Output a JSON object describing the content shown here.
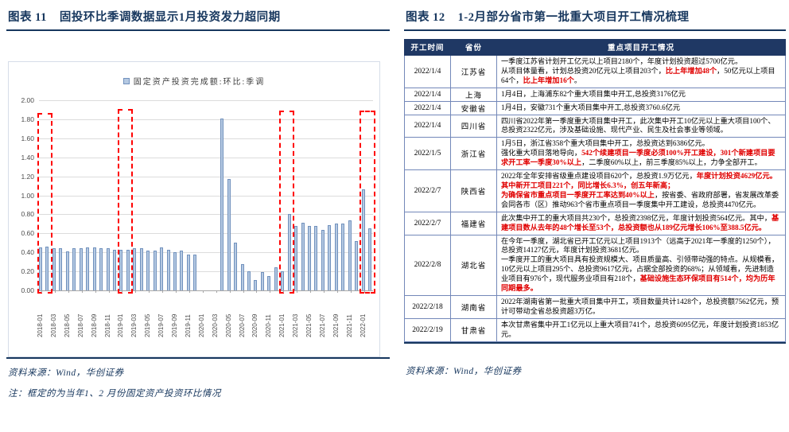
{
  "colors": {
    "navy": "#17375E",
    "table_header_bg": "#1F3864",
    "table_border": "#7388B9",
    "highlight_red": "#FF0000",
    "text_red": "#E00000",
    "bar_fill": "#B5C9E2",
    "bar_border": "#7191BD",
    "gridline": "#DCDCDC"
  },
  "fig11": {
    "label": "图表 11",
    "title": "固投环比季调数据显示1月投资发力超同期",
    "source": "资料来源：Wind，华创证券",
    "note": "注：框定的为当年1、2 月份固定资产投资环比情况"
  },
  "chart_data": {
    "type": "bar",
    "title": "",
    "legend": "固定资产投资完成额:环比:季调",
    "xlabel": "",
    "ylabel": "",
    "ylim": [
      0,
      2
    ],
    "grid": true,
    "y_tick_labels": [
      "2.00",
      "1.80",
      "1.60",
      "1.40",
      "1.20",
      "1.00",
      "0.80",
      "0.60",
      "0.40",
      "0.20",
      "0.00"
    ],
    "x_tick_every": 2,
    "categories": [
      "2018-01",
      "2018-02",
      "2018-03",
      "2018-04",
      "2018-05",
      "2018-06",
      "2018-07",
      "2018-08",
      "2018-09",
      "2018-10",
      "2018-11",
      "2018-12",
      "2019-01",
      "2019-02",
      "2019-03",
      "2019-04",
      "2019-05",
      "2019-06",
      "2019-07",
      "2019-08",
      "2019-09",
      "2019-10",
      "2019-11",
      "2019-12",
      "2020-01",
      "2020-02",
      "2020-03",
      "2020-04",
      "2020-05",
      "2020-06",
      "2020-07",
      "2020-08",
      "2020-09",
      "2020-10",
      "2020-11",
      "2020-12",
      "2021-01",
      "2021-02",
      "2021-03",
      "2021-04",
      "2021-05",
      "2021-06",
      "2021-07",
      "2021-08",
      "2021-09",
      "2021-10",
      "2021-11",
      "2021-12",
      "2022-01",
      "2022-02"
    ],
    "values": [
      0.45,
      0.46,
      0.44,
      0.44,
      0.41,
      0.44,
      0.44,
      0.45,
      0.45,
      0.44,
      0.44,
      0.43,
      0.43,
      0.43,
      0.44,
      0.44,
      0.42,
      0.42,
      0.45,
      0.43,
      0.4,
      0.42,
      0.38,
      0.38,
      null,
      null,
      null,
      1.81,
      1.17,
      0.5,
      0.28,
      0.2,
      0.11,
      0.19,
      0.15,
      0.24,
      0.2,
      0.8,
      0.68,
      0.71,
      0.68,
      0.68,
      0.64,
      0.69,
      0.7,
      0.7,
      0.74,
      0.52,
      1.06,
      0.65
    ],
    "highlight_boxes": [
      {
        "from": "2018-01",
        "to": "2018-02",
        "start_index": 0,
        "end_index": 1,
        "top_value": 1.87
      },
      {
        "from": "2019-01",
        "to": "2019-02",
        "start_index": 12,
        "end_index": 13,
        "top_value": 1.91
      },
      {
        "from": "2021-01",
        "to": "2021-02",
        "start_index": 36,
        "end_index": 37,
        "top_value": 1.89
      },
      {
        "from": "2022-01",
        "to": "2022-02",
        "start_index": 48,
        "end_index": 49,
        "top_value": 1.89
      }
    ]
  },
  "fig12": {
    "label": "图表 12",
    "title": "1-2月部分省市第一批重大项目开工情况梳理",
    "source": "资料来源：Wind，华创证券",
    "table": {
      "headers": [
        "开工时间",
        "省份",
        "重点项目开工情况"
      ],
      "rows": [
        {
          "date": "2022/1/4",
          "province": "江苏省",
          "paragraphs": [
            [
              {
                "t": "一季度江苏省计划开工亿元以上项目2180个，年度计划投资超过5700亿元。",
                "red": false
              }
            ],
            [
              {
                "t": "从项目体量看，计划总投资20亿元以上项目203个，",
                "red": false
              },
              {
                "t": "比上年增加48个",
                "red": true
              },
              {
                "t": "，50亿元以上项目64个，",
                "red": false
              },
              {
                "t": "比上年增加16个",
                "red": true
              },
              {
                "t": "。",
                "red": false
              }
            ]
          ]
        },
        {
          "date": "2022/1/4",
          "province": "上海",
          "paragraphs": [
            [
              {
                "t": "1月4日，上海浦东82个重大项目集中开工,总投资3176亿元",
                "red": false
              }
            ]
          ]
        },
        {
          "date": "2022/1/4",
          "province": "安徽省",
          "paragraphs": [
            [
              {
                "t": "1月4日，安徽731个重大项目集中开工,总投资3760.6亿元",
                "red": false
              }
            ]
          ]
        },
        {
          "date": "2022/1/4",
          "province": "四川省",
          "paragraphs": [
            [
              {
                "t": "四川省2022年第一季度重大项目集中开工，此次集中开工10亿元以上重大项目100个、总投资2322亿元，涉及基础设施、现代产业、民生及社会事业等领域。",
                "red": false
              }
            ]
          ]
        },
        {
          "date": "2022/1/5",
          "province": "浙江省",
          "paragraphs": [
            [
              {
                "t": "1月5日，浙江省358个重大项目集中开工，总投资达到6386亿元。",
                "red": false
              }
            ],
            [
              {
                "t": "强化重大项目落地导向，",
                "red": false
              },
              {
                "t": "542个续建项目一季度必须100%开工建设，301个新建项目要求开工率一季度30%以上",
                "red": true
              },
              {
                "t": "，二季度60%以上，前三季度85%以上，力争全部开工。",
                "red": false
              }
            ]
          ]
        },
        {
          "date": "2022/2/7",
          "province": "陕西省",
          "paragraphs": [
            [
              {
                "t": "2022年全年安排省级重点建设项目620个，总投资1.9万亿元，",
                "red": false
              },
              {
                "t": "年度计划投资4629亿元。其中新开工项目221个，同比增长6.3%，创五年新高；",
                "red": true
              }
            ],
            [
              {
                "t": "为确保省市重点项目一季度开工率达到40%以上",
                "red": true
              },
              {
                "t": "，按省委、省政府部署，省发展改革委会同各市（区）推动963个省市重点项目一季度集中开工建设，总投资4470亿元。",
                "red": false
              }
            ]
          ]
        },
        {
          "date": "2022/2/7",
          "province": "福建省",
          "paragraphs": [
            [
              {
                "t": "此次集中开工的重大项目共230个，总投资2398亿元，年度计划投资564亿元。其中，",
                "red": false
              },
              {
                "t": "基建项目数从去年的48个增长至53个，总投资额也从189亿元增长106%至388.5亿元。",
                "red": true
              }
            ]
          ]
        },
        {
          "date": "2022/2/8",
          "province": "湖北省",
          "paragraphs": [
            [
              {
                "t": "在今年一季度，湖北省已开工亿元以上项目1913个（远高于2021年一季度的1250个），总投资14127亿元，年度计划投资3681亿元。",
                "red": false
              }
            ],
            [
              {
                "t": "一季度开工的重大项目具有投资规模大、项目质量高、引领带动强的特点。从规模看，10亿元以上项目295个、总投资9617亿元，占据全部投资的68%；从领域看，先进制造业项目有976个，现代服务业项目有218个，",
                "red": false
              },
              {
                "t": "基础设施生态环保项目有514个，均为历年同期最多。",
                "red": true
              }
            ]
          ]
        },
        {
          "date": "2022/2/18",
          "province": "湖南省",
          "paragraphs": [
            [
              {
                "t": "2022年湖南省第一批重大项目集中开工，项目数量共计1428个，总投资额7562亿元，预计可带动全省总投资超3万亿。",
                "red": false
              }
            ]
          ]
        },
        {
          "date": "2022/2/19",
          "province": "甘肃省",
          "paragraphs": [
            [
              {
                "t": "本次甘肃省集中开工1亿元以上重大项目741个，总投资6095亿元，年度计划投资1853亿元。",
                "red": false
              }
            ]
          ]
        }
      ]
    }
  }
}
